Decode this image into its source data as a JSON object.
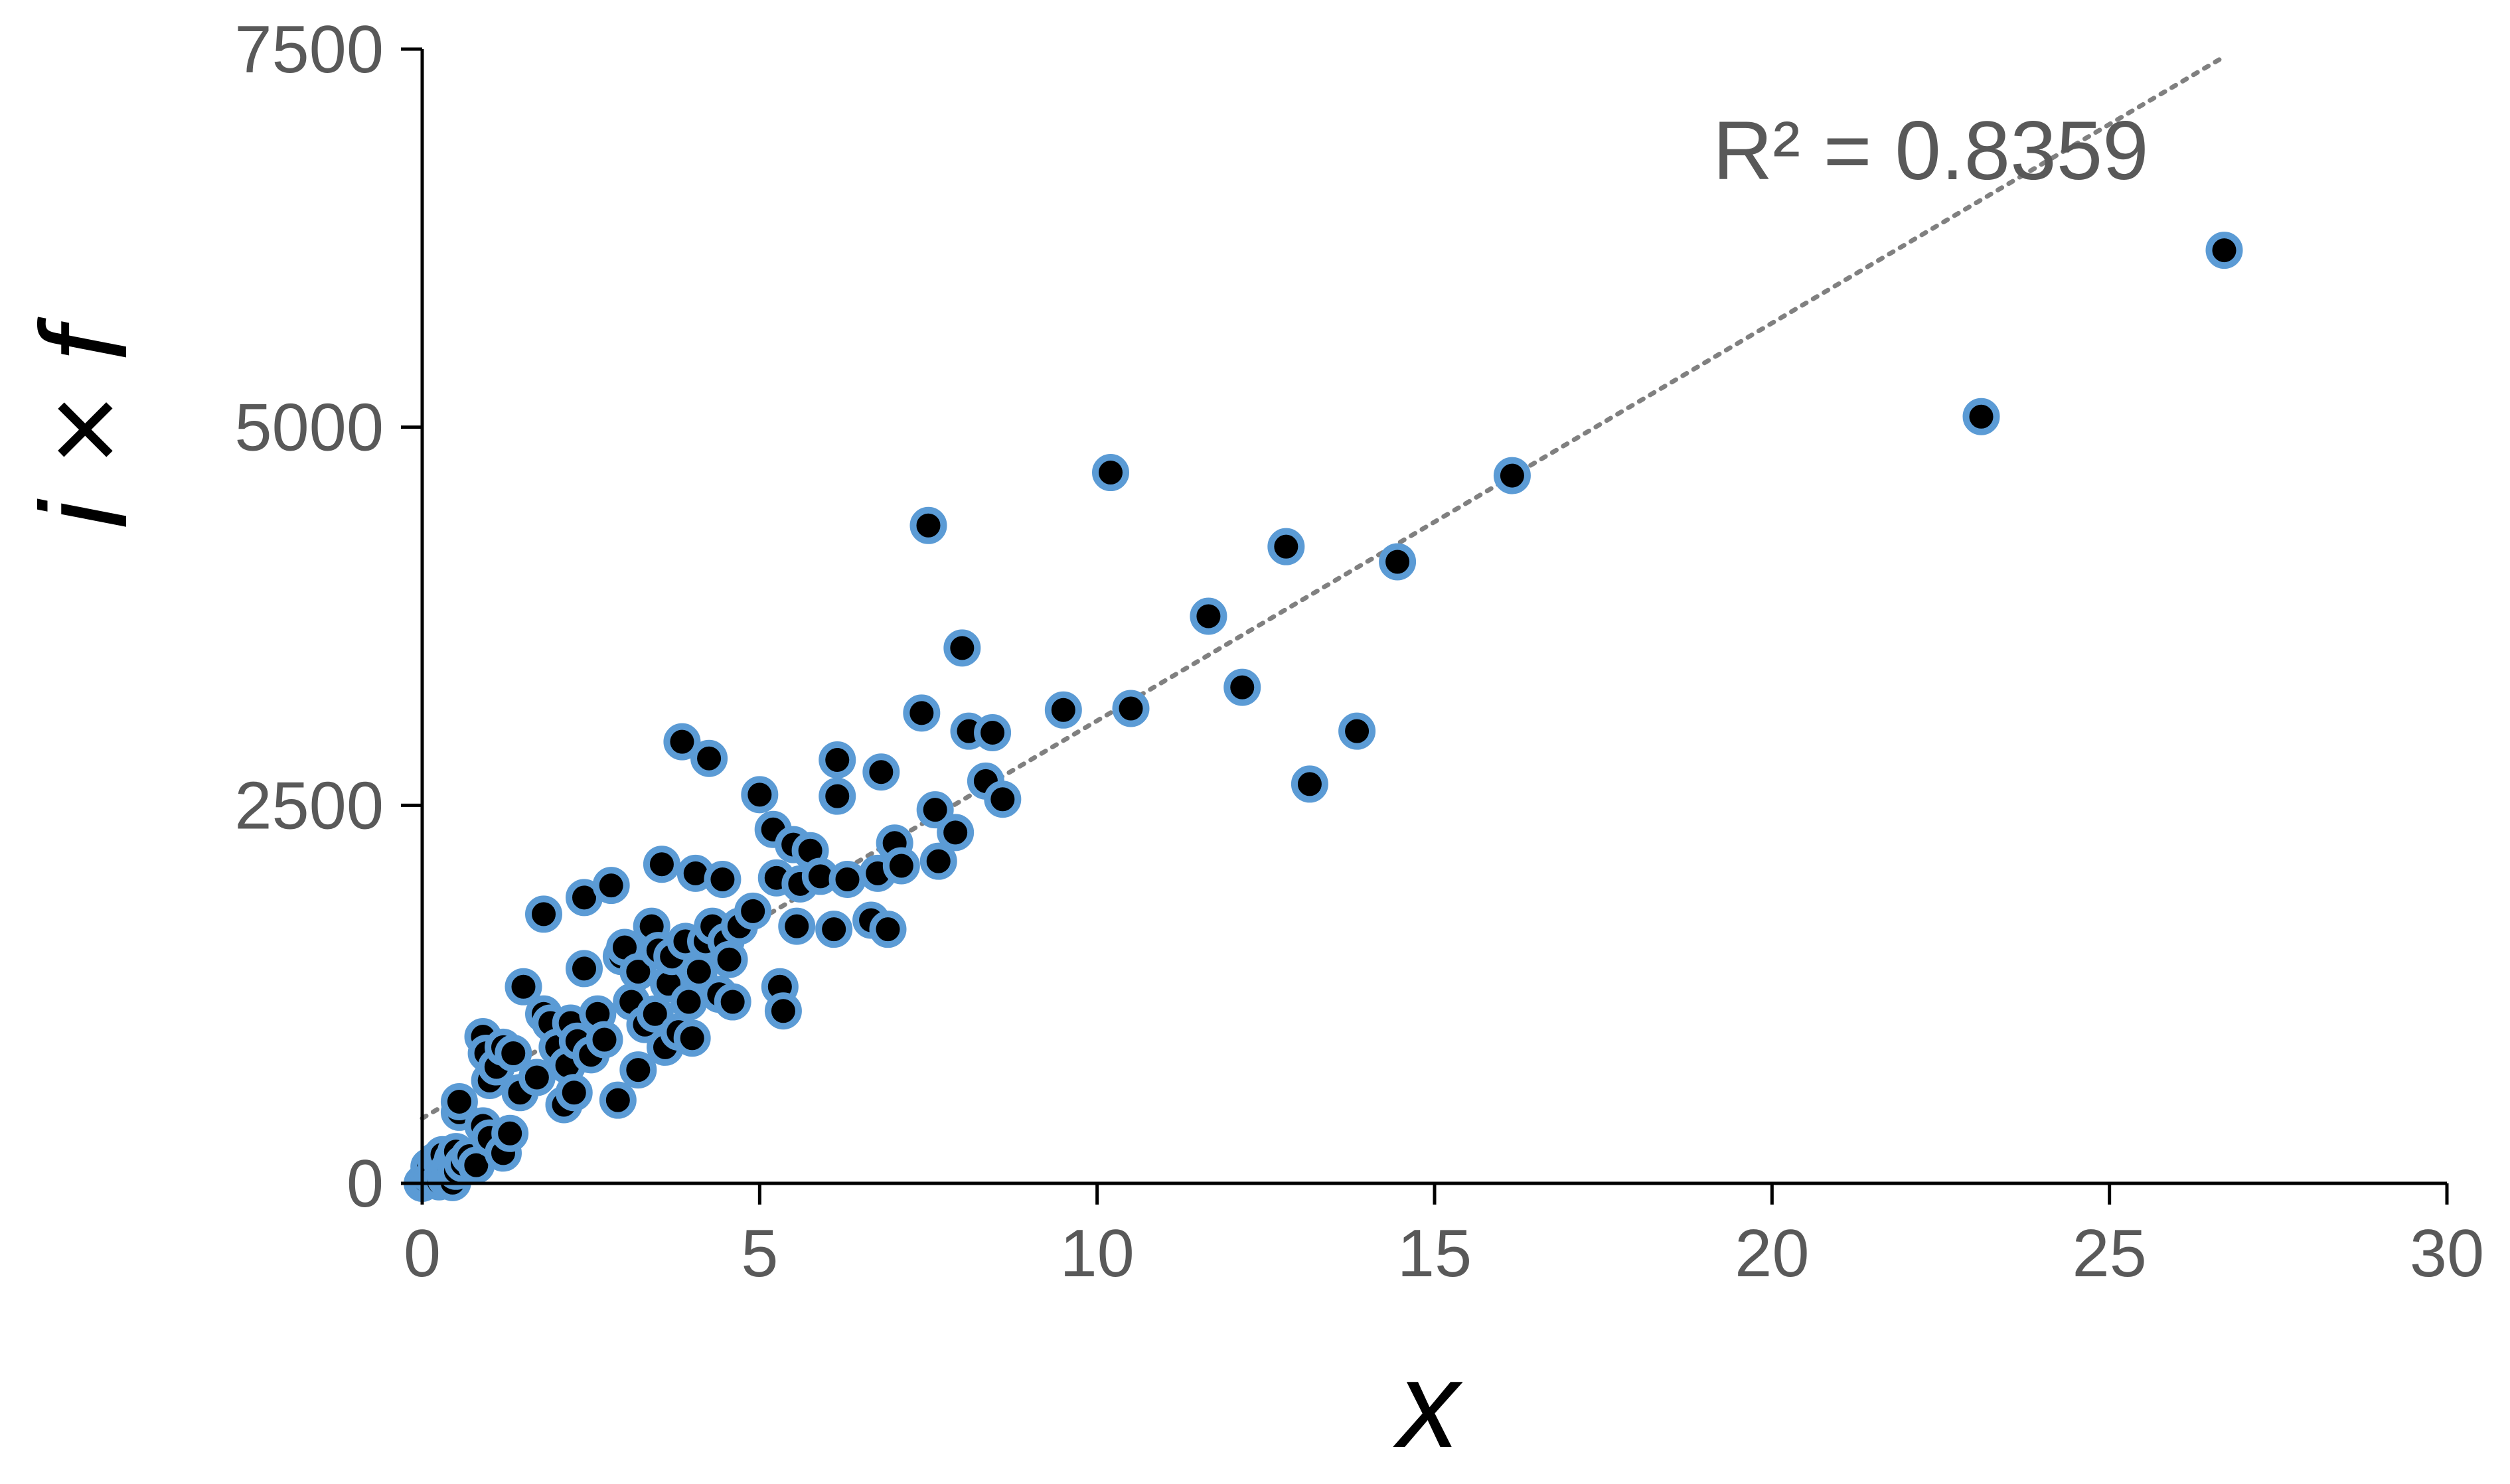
{
  "chart_data": {
    "type": "scatter",
    "title": "",
    "xlabel": "x",
    "ylabel": "i × f",
    "xlim": [
      0,
      30
    ],
    "ylim": [
      0,
      7500
    ],
    "x_ticks": [
      0,
      5,
      10,
      15,
      20,
      25,
      30
    ],
    "y_ticks": [
      0,
      2500,
      5000,
      7500
    ],
    "x_tick_labels": [
      "0",
      "5",
      "10",
      "15",
      "20",
      "25",
      "30"
    ],
    "y_tick_labels": [
      "0",
      "2500",
      "5000",
      "7500"
    ],
    "grid": false,
    "legend": "none",
    "trendline": {
      "type": "linear",
      "style": "dotted",
      "x_range": [
        0,
        26.7
      ],
      "y_range": [
        430,
        7450
      ],
      "label": "R² = 0.8359"
    },
    "marker_style": {
      "fill": "#000000",
      "edge": "#5b9bd5"
    },
    "trendline_color": "#808080",
    "axis_color": "#000000",
    "series": [
      {
        "points": [
          [
            0.0,
            0
          ],
          [
            0.05,
            20
          ],
          [
            0.1,
            60
          ],
          [
            0.1,
            110
          ],
          [
            0.15,
            40
          ],
          [
            0.2,
            150
          ],
          [
            0.2,
            80
          ],
          [
            0.25,
            10
          ],
          [
            0.3,
            120
          ],
          [
            0.3,
            190
          ],
          [
            0.35,
            30
          ],
          [
            0.35,
            60
          ],
          [
            0.4,
            100
          ],
          [
            0.45,
            160
          ],
          [
            0.45,
            5
          ],
          [
            0.5,
            80
          ],
          [
            0.5,
            210
          ],
          [
            0.55,
            470
          ],
          [
            0.55,
            540
          ],
          [
            0.6,
            130
          ],
          [
            0.7,
            180
          ],
          [
            0.8,
            120
          ],
          [
            0.9,
            380
          ],
          [
            0.9,
            970
          ],
          [
            0.95,
            860
          ],
          [
            1.0,
            680
          ],
          [
            1.0,
            300
          ],
          [
            1.1,
            770
          ],
          [
            1.2,
            200
          ],
          [
            1.2,
            900
          ],
          [
            1.3,
            330
          ],
          [
            1.35,
            860
          ],
          [
            1.45,
            600
          ],
          [
            1.5,
            1300
          ],
          [
            1.7,
            700
          ],
          [
            1.8,
            1780
          ],
          [
            1.8,
            1120
          ],
          [
            1.9,
            1060
          ],
          [
            2.0,
            900
          ],
          [
            2.1,
            520
          ],
          [
            2.15,
            780
          ],
          [
            2.2,
            1060
          ],
          [
            2.25,
            600
          ],
          [
            2.3,
            940
          ],
          [
            2.4,
            1420
          ],
          [
            2.4,
            1890
          ],
          [
            2.5,
            850
          ],
          [
            2.6,
            1120
          ],
          [
            2.7,
            950
          ],
          [
            2.8,
            1970
          ],
          [
            2.9,
            550
          ],
          [
            2.95,
            1500
          ],
          [
            3.0,
            1560
          ],
          [
            3.1,
            1200
          ],
          [
            3.2,
            750
          ],
          [
            3.2,
            1400
          ],
          [
            3.3,
            1050
          ],
          [
            3.4,
            1700
          ],
          [
            3.45,
            1120
          ],
          [
            3.5,
            1540
          ],
          [
            3.55,
            2110
          ],
          [
            3.6,
            900
          ],
          [
            3.65,
            1320
          ],
          [
            3.7,
            1500
          ],
          [
            3.8,
            1000
          ],
          [
            3.85,
            2920
          ],
          [
            3.9,
            1600
          ],
          [
            3.95,
            1200
          ],
          [
            4.0,
            960
          ],
          [
            4.05,
            2050
          ],
          [
            4.1,
            1400
          ],
          [
            4.2,
            1600
          ],
          [
            4.25,
            2810
          ],
          [
            4.3,
            1700
          ],
          [
            4.4,
            1250
          ],
          [
            4.45,
            2010
          ],
          [
            4.5,
            1600
          ],
          [
            4.55,
            1480
          ],
          [
            4.6,
            1200
          ],
          [
            4.7,
            1700
          ],
          [
            4.9,
            1800
          ],
          [
            5.0,
            2570
          ],
          [
            5.2,
            2340
          ],
          [
            5.25,
            2020
          ],
          [
            5.3,
            1300
          ],
          [
            5.35,
            1140
          ],
          [
            5.5,
            2240
          ],
          [
            5.55,
            1700
          ],
          [
            5.6,
            1980
          ],
          [
            5.75,
            2200
          ],
          [
            5.9,
            2030
          ],
          [
            6.1,
            1680
          ],
          [
            6.15,
            2560
          ],
          [
            6.15,
            2800
          ],
          [
            6.3,
            2010
          ],
          [
            6.65,
            1740
          ],
          [
            6.75,
            2050
          ],
          [
            6.8,
            2720
          ],
          [
            6.9,
            1680
          ],
          [
            7.0,
            2250
          ],
          [
            7.1,
            2100
          ],
          [
            7.4,
            3110
          ],
          [
            7.5,
            4350
          ],
          [
            7.6,
            2470
          ],
          [
            7.65,
            2130
          ],
          [
            7.9,
            2320
          ],
          [
            8.0,
            3540
          ],
          [
            8.1,
            2990
          ],
          [
            8.35,
            2660
          ],
          [
            8.45,
            2980
          ],
          [
            8.6,
            2540
          ],
          [
            9.5,
            3130
          ],
          [
            10.2,
            4700
          ],
          [
            10.5,
            3140
          ],
          [
            11.65,
            3750
          ],
          [
            12.15,
            3280
          ],
          [
            12.8,
            4210
          ],
          [
            13.15,
            2640
          ],
          [
            13.85,
            2990
          ],
          [
            14.45,
            4110
          ],
          [
            16.15,
            4680
          ],
          [
            23.1,
            5070
          ],
          [
            26.7,
            6170
          ]
        ]
      }
    ]
  }
}
